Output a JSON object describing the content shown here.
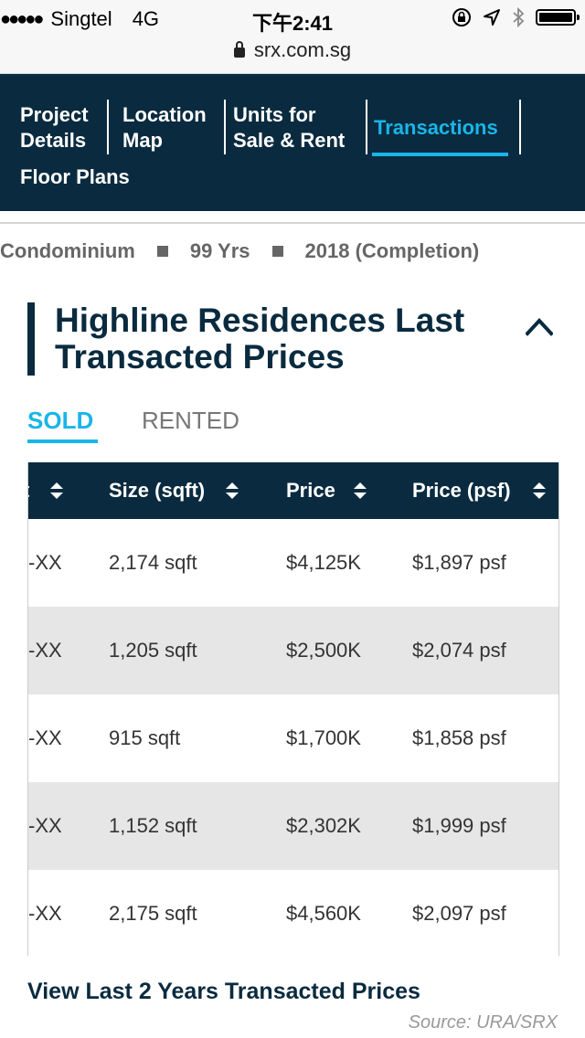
{
  "status_bar": {
    "signal": "●●●●●",
    "carrier": "Singtel",
    "network": "4G",
    "time": "下午2:41",
    "url": "srx.com.sg"
  },
  "nav": {
    "items": [
      {
        "line1": "Project",
        "line2": "Details"
      },
      {
        "line1": "Location",
        "line2": "Map"
      },
      {
        "line1": "Units for",
        "line2": "Sale & Rent"
      },
      {
        "line1": "Transactions",
        "line2": ""
      },
      {
        "line1": "Floor Plans",
        "line2": ""
      }
    ],
    "active_color": "#1ab5e8",
    "bg_color": "#0a2b3f"
  },
  "meta": {
    "type": "Condominium",
    "tenure": "99 Yrs",
    "completion": "2018 (Completion)"
  },
  "section": {
    "title": "Highline Residences Last Transacted Prices"
  },
  "tabs": {
    "sold": "SOLD",
    "rented": "RENTED"
  },
  "table": {
    "headers": [
      "t",
      "Size (sqft)",
      "Price",
      "Price (psf)"
    ],
    "rows": [
      [
        "-XX",
        "2,174 sqft",
        "$4,125K",
        "$1,897 psf"
      ],
      [
        "-XX",
        "1,205 sqft",
        "$2,500K",
        "$2,074 psf"
      ],
      [
        "-XX",
        "915 sqft",
        "$1,700K",
        "$1,858 psf"
      ],
      [
        "-XX",
        "1,152 sqft",
        "$2,302K",
        "$1,999 psf"
      ],
      [
        "-XX",
        "2,175 sqft",
        "$4,560K",
        "$2,097 psf"
      ]
    ]
  },
  "footer": {
    "link": "View Last 2 Years Transacted Prices",
    "source": "Source: URA/SRX"
  }
}
